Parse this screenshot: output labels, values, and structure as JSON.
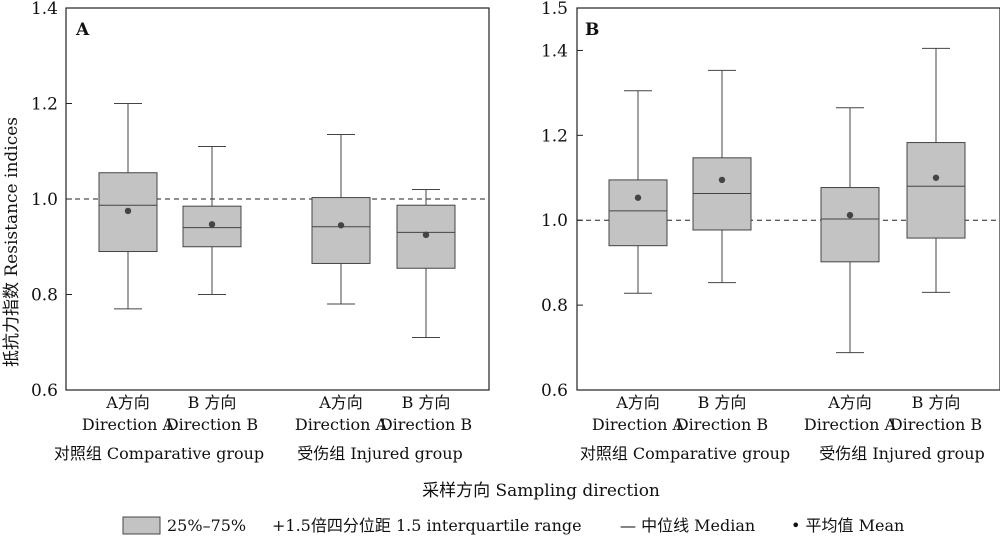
{
  "colors": {
    "box_fill": "#c3c3c3",
    "box_stroke": "#444444",
    "whisker": "#444444",
    "mean_dot": "#444444",
    "reference_line": "#222222",
    "axis": "#222222"
  },
  "x_axis_title": "采样方向 Sampling direction",
  "y_axis_title": "抵抗力指数 Resistance indices",
  "legend": {
    "box": "25%–75%",
    "whisker": "+1.5倍四分位距 1.5 interquartile range",
    "median": "— 中位线 Median",
    "mean": "• 平均值 Mean"
  },
  "chart_data": [
    {
      "type": "box",
      "panel": "A",
      "ylim": [
        0.6,
        1.4
      ],
      "yticks": [
        "0.6",
        "0.8",
        "1.0",
        "1.2",
        "1.4"
      ],
      "reference_line": 1.0,
      "categories": [
        {
          "line1": "A方向",
          "line2": "Direction A"
        },
        {
          "line1": "B 方向",
          "line2": "Direction B"
        },
        {
          "line1": "A方向",
          "line2": "Direction A"
        },
        {
          "line1": "B 方向",
          "line2": "Direction B"
        }
      ],
      "groups": [
        "对照组 Comparative group",
        "受伤组 Injured group"
      ],
      "boxes": [
        {
          "min": 0.77,
          "q1": 0.89,
          "median": 0.987,
          "q3": 1.055,
          "max": 1.2,
          "mean": 0.975
        },
        {
          "min": 0.8,
          "q1": 0.9,
          "median": 0.94,
          "q3": 0.985,
          "max": 1.11,
          "mean": 0.947
        },
        {
          "min": 0.78,
          "q1": 0.865,
          "median": 0.942,
          "q3": 1.003,
          "max": 1.135,
          "mean": 0.945
        },
        {
          "min": 0.71,
          "q1": 0.855,
          "median": 0.93,
          "q3": 0.987,
          "max": 1.02,
          "mean": 0.925
        }
      ]
    },
    {
      "type": "box",
      "panel": "B",
      "ylim": [
        0.6,
        1.5
      ],
      "yticks": [
        "0.6",
        "0.8",
        "1.0",
        "1.2",
        "1.4",
        "1.5"
      ],
      "reference_line": 1.0,
      "categories": [
        {
          "line1": "A方向",
          "line2": "Direction A"
        },
        {
          "line1": "B 方向",
          "line2": "Direction B"
        },
        {
          "line1": "A方向",
          "line2": "Direction A"
        },
        {
          "line1": "B 方向",
          "line2": "Direction B"
        }
      ],
      "groups": [
        "对照组 Comparative group",
        "受伤组 Injured group"
      ],
      "boxes": [
        {
          "min": 0.828,
          "q1": 0.94,
          "median": 1.022,
          "q3": 1.095,
          "max": 1.305,
          "mean": 1.053
        },
        {
          "min": 0.853,
          "q1": 0.977,
          "median": 1.063,
          "q3": 1.147,
          "max": 1.353,
          "mean": 1.095
        },
        {
          "min": 0.688,
          "q1": 0.902,
          "median": 1.003,
          "q3": 1.077,
          "max": 1.265,
          "mean": 1.012
        },
        {
          "min": 0.83,
          "q1": 0.958,
          "median": 1.08,
          "q3": 1.183,
          "max": 1.405,
          "mean": 1.1
        }
      ]
    }
  ]
}
